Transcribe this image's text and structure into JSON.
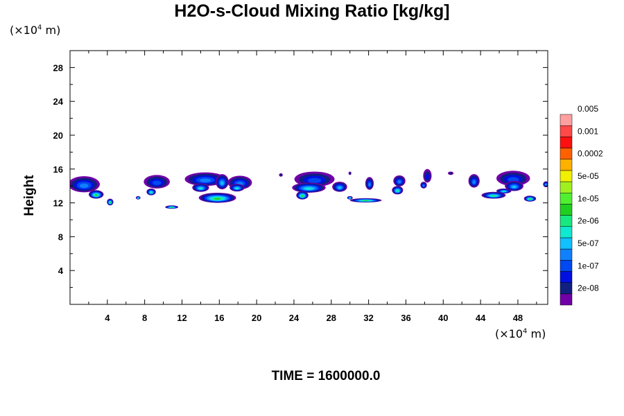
{
  "chart_data": {
    "type": "heatmap",
    "title": "H2O-s-Cloud Mixing Ratio [kg/kg]",
    "ylabel": "Height",
    "x_unit": {
      "pre": "(×10",
      "exp": "4",
      "post": " m)"
    },
    "y_unit": {
      "pre": "(×10",
      "exp": "4",
      "post": " m)"
    },
    "xlim": [
      0,
      51.2
    ],
    "ylim": [
      0,
      30
    ],
    "x_ticks": [
      4,
      8,
      12,
      16,
      20,
      24,
      28,
      32,
      36,
      40,
      44,
      48
    ],
    "y_ticks": [
      4,
      8,
      12,
      16,
      20,
      24,
      28
    ],
    "grid": false,
    "colorbar": {
      "colors": [
        "#7000a8",
        "#102080",
        "#0010e0",
        "#0048f0",
        "#1080ff",
        "#10c0ff",
        "#10e8d0",
        "#18e880",
        "#20d020",
        "#50f030",
        "#a0f020",
        "#f0f000",
        "#ffb000",
        "#ff6000",
        "#ff1010",
        "#ff4848",
        "#ffa0a0"
      ],
      "labels": [
        "2e-08",
        "1e-07",
        "5e-07",
        "2e-06",
        "1e-05",
        "5e-05",
        "0.0002",
        "0.001",
        "0.005"
      ]
    },
    "cloud_patches": [
      {
        "x": 1.5,
        "y": 14.2,
        "w": 3.4,
        "h": 1.9,
        "level": 4
      },
      {
        "x": 2.8,
        "y": 13.0,
        "w": 1.6,
        "h": 1.0,
        "level": 8
      },
      {
        "x": 4.3,
        "y": 12.1,
        "w": 0.7,
        "h": 0.8,
        "level": 8
      },
      {
        "x": 9.3,
        "y": 14.5,
        "w": 2.8,
        "h": 1.6,
        "level": 3
      },
      {
        "x": 8.7,
        "y": 13.3,
        "w": 1.0,
        "h": 0.8,
        "level": 7
      },
      {
        "x": 7.3,
        "y": 12.6,
        "w": 0.5,
        "h": 0.4,
        "level": 7
      },
      {
        "x": 14.5,
        "y": 14.8,
        "w": 4.4,
        "h": 1.6,
        "level": 4
      },
      {
        "x": 14.0,
        "y": 13.8,
        "w": 1.8,
        "h": 1.0,
        "level": 6
      },
      {
        "x": 16.3,
        "y": 14.5,
        "w": 1.4,
        "h": 1.8,
        "level": 5
      },
      {
        "x": 15.8,
        "y": 12.6,
        "w": 4.0,
        "h": 1.2,
        "level": 8
      },
      {
        "x": 18.2,
        "y": 14.4,
        "w": 2.6,
        "h": 1.6,
        "level": 4
      },
      {
        "x": 17.9,
        "y": 13.8,
        "w": 1.6,
        "h": 0.9,
        "level": 6
      },
      {
        "x": 10.9,
        "y": 11.5,
        "w": 1.4,
        "h": 0.4,
        "level": 8
      },
      {
        "x": 22.6,
        "y": 15.3,
        "w": 0.4,
        "h": 0.4,
        "level": 1
      },
      {
        "x": 26.2,
        "y": 14.8,
        "w": 4.3,
        "h": 1.8,
        "level": 3
      },
      {
        "x": 25.6,
        "y": 13.8,
        "w": 3.6,
        "h": 1.2,
        "level": 6
      },
      {
        "x": 24.9,
        "y": 12.9,
        "w": 1.3,
        "h": 1.0,
        "level": 8
      },
      {
        "x": 28.9,
        "y": 13.9,
        "w": 1.6,
        "h": 1.2,
        "level": 5
      },
      {
        "x": 31.7,
        "y": 12.3,
        "w": 3.4,
        "h": 0.5,
        "level": 8
      },
      {
        "x": 30.0,
        "y": 12.6,
        "w": 0.6,
        "h": 0.4,
        "level": 7
      },
      {
        "x": 32.1,
        "y": 14.3,
        "w": 0.9,
        "h": 1.5,
        "level": 4
      },
      {
        "x": 30.0,
        "y": 15.5,
        "w": 0.3,
        "h": 0.4,
        "level": 1
      },
      {
        "x": 35.3,
        "y": 14.6,
        "w": 1.3,
        "h": 1.3,
        "level": 4
      },
      {
        "x": 35.1,
        "y": 13.5,
        "w": 1.2,
        "h": 1.0,
        "level": 7
      },
      {
        "x": 38.3,
        "y": 15.2,
        "w": 0.9,
        "h": 1.6,
        "level": 2
      },
      {
        "x": 37.9,
        "y": 14.1,
        "w": 0.7,
        "h": 0.8,
        "level": 4
      },
      {
        "x": 40.8,
        "y": 15.5,
        "w": 0.6,
        "h": 0.4,
        "level": 1
      },
      {
        "x": 43.3,
        "y": 14.6,
        "w": 1.2,
        "h": 1.6,
        "level": 4
      },
      {
        "x": 47.5,
        "y": 14.9,
        "w": 3.6,
        "h": 1.8,
        "level": 3
      },
      {
        "x": 47.6,
        "y": 14.0,
        "w": 2.0,
        "h": 1.2,
        "level": 5
      },
      {
        "x": 46.5,
        "y": 13.4,
        "w": 1.6,
        "h": 0.6,
        "level": 6
      },
      {
        "x": 45.4,
        "y": 12.9,
        "w": 2.6,
        "h": 0.8,
        "level": 7
      },
      {
        "x": 49.3,
        "y": 12.5,
        "w": 1.3,
        "h": 0.7,
        "level": 8
      },
      {
        "x": 51.0,
        "y": 14.2,
        "w": 0.6,
        "h": 0.7,
        "level": 5
      }
    ]
  },
  "footer": {
    "time_label": "TIME = 1600000.0"
  }
}
